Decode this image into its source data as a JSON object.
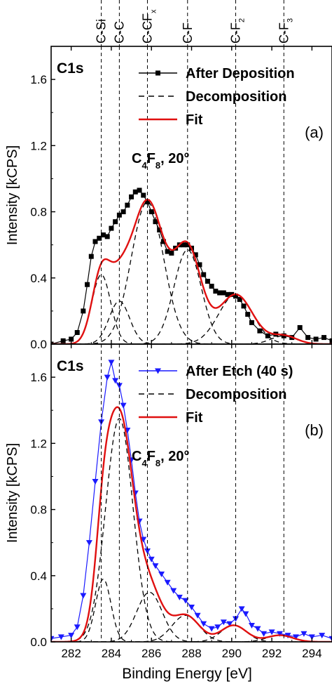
{
  "figure": {
    "xlabel": "Binding Energy [eV]",
    "peak_labels": [
      {
        "base": "C-Si",
        "sub": ""
      },
      {
        "base": "C-C",
        "sub": ""
      },
      {
        "base": "C-CF",
        "sub": "x"
      },
      {
        "base": "C-F",
        "sub": ""
      },
      {
        "base": "C-F",
        "sub": "2"
      },
      {
        "base": "C-F",
        "sub": "3"
      }
    ],
    "colors": {
      "data_a": "#000000",
      "data_b": "#1a1aff",
      "fit": "#e01010",
      "decomposition": "#000000",
      "reference_lines": "#000000"
    }
  },
  "chart_data": [
    {
      "type": "line",
      "panel_tag": "C1s",
      "panel_letter": "(a)",
      "condition": {
        "base": "C",
        "sub1": "4",
        "mid": "F",
        "sub2": "8",
        "tail": ", 20°"
      },
      "xlabel": "Binding Energy [eV]",
      "ylabel": "Intensity [kCPS]",
      "xlim": [
        281,
        295
      ],
      "ylim": [
        0,
        1.8
      ],
      "xticks": [
        282,
        284,
        286,
        288,
        290,
        292,
        294
      ],
      "yticks": [
        0.0,
        0.4,
        0.8,
        1.2,
        1.6
      ],
      "ytick_labels": [
        "0.0",
        "0.4",
        "0.8",
        "1.2",
        "1.6"
      ],
      "reference_lines_x": [
        283.5,
        284.4,
        285.8,
        287.8,
        290.2,
        292.6
      ],
      "legend": {
        "position": "top-right",
        "entries": [
          {
            "label": "After Deposition",
            "style": "line-square"
          },
          {
            "label": "Decomposition",
            "style": "dashed"
          },
          {
            "label": "Fit",
            "style": "red-line"
          }
        ]
      },
      "components": [
        {
          "center": 283.5,
          "amplitude": 0.42,
          "fwhm": 1.1
        },
        {
          "center": 284.4,
          "amplitude": 0.26,
          "fwhm": 1.2
        },
        {
          "center": 285.8,
          "amplitude": 0.86,
          "fwhm": 1.9
        },
        {
          "center": 287.8,
          "amplitude": 0.57,
          "fwhm": 1.6
        },
        {
          "center": 290.2,
          "amplitude": 0.3,
          "fwhm": 2.0
        },
        {
          "center": 292.6,
          "amplitude": 0.05,
          "fwhm": 1.5
        }
      ],
      "data_points": [
        {
          "x": 281.0,
          "y": 0.0
        },
        {
          "x": 281.6,
          "y": 0.02
        },
        {
          "x": 282.0,
          "y": 0.03
        },
        {
          "x": 282.3,
          "y": 0.07
        },
        {
          "x": 282.6,
          "y": 0.2
        },
        {
          "x": 282.8,
          "y": 0.36
        },
        {
          "x": 283.0,
          "y": 0.53
        },
        {
          "x": 283.2,
          "y": 0.62
        },
        {
          "x": 283.4,
          "y": 0.64
        },
        {
          "x": 283.6,
          "y": 0.66
        },
        {
          "x": 283.8,
          "y": 0.65
        },
        {
          "x": 284.0,
          "y": 0.7
        },
        {
          "x": 284.2,
          "y": 0.74
        },
        {
          "x": 284.4,
          "y": 0.78
        },
        {
          "x": 284.6,
          "y": 0.8
        },
        {
          "x": 284.8,
          "y": 0.84
        },
        {
          "x": 285.0,
          "y": 0.89
        },
        {
          "x": 285.2,
          "y": 0.92
        },
        {
          "x": 285.4,
          "y": 0.93
        },
        {
          "x": 285.6,
          "y": 0.9
        },
        {
          "x": 285.8,
          "y": 0.86
        },
        {
          "x": 286.0,
          "y": 0.8
        },
        {
          "x": 286.2,
          "y": 0.74
        },
        {
          "x": 286.4,
          "y": 0.69
        },
        {
          "x": 286.6,
          "y": 0.62
        },
        {
          "x": 286.8,
          "y": 0.56
        },
        {
          "x": 287.0,
          "y": 0.55
        },
        {
          "x": 287.2,
          "y": 0.58
        },
        {
          "x": 287.4,
          "y": 0.6
        },
        {
          "x": 287.6,
          "y": 0.6
        },
        {
          "x": 287.8,
          "y": 0.6
        },
        {
          "x": 288.0,
          "y": 0.58
        },
        {
          "x": 288.2,
          "y": 0.54
        },
        {
          "x": 288.4,
          "y": 0.48
        },
        {
          "x": 288.6,
          "y": 0.42
        },
        {
          "x": 288.8,
          "y": 0.38
        },
        {
          "x": 289.0,
          "y": 0.35
        },
        {
          "x": 289.2,
          "y": 0.32
        },
        {
          "x": 289.4,
          "y": 0.31
        },
        {
          "x": 289.6,
          "y": 0.31
        },
        {
          "x": 289.8,
          "y": 0.3
        },
        {
          "x": 290.0,
          "y": 0.3
        },
        {
          "x": 290.2,
          "y": 0.29
        },
        {
          "x": 290.4,
          "y": 0.27
        },
        {
          "x": 290.6,
          "y": 0.23
        },
        {
          "x": 290.8,
          "y": 0.18
        },
        {
          "x": 291.0,
          "y": 0.13
        },
        {
          "x": 291.4,
          "y": 0.08
        },
        {
          "x": 291.8,
          "y": 0.05
        },
        {
          "x": 292.2,
          "y": 0.06
        },
        {
          "x": 292.6,
          "y": 0.05
        },
        {
          "x": 293.0,
          "y": 0.04
        },
        {
          "x": 293.4,
          "y": 0.1
        },
        {
          "x": 293.8,
          "y": 0.04
        },
        {
          "x": 294.2,
          "y": 0.03
        },
        {
          "x": 294.6,
          "y": 0.04
        },
        {
          "x": 295.0,
          "y": 0.02
        }
      ]
    },
    {
      "type": "line",
      "panel_tag": "C1s",
      "panel_letter": "(b)",
      "condition": {
        "base": "C",
        "sub1": "4",
        "mid": "F",
        "sub2": "8",
        "tail": ", 20°"
      },
      "xlabel": "Binding Energy [eV]",
      "ylabel": "Intensity [kCPS]",
      "xlim": [
        281,
        295
      ],
      "ylim": [
        0,
        1.8
      ],
      "xticks": [
        282,
        284,
        286,
        288,
        290,
        292,
        294
      ],
      "xtick_labels": [
        "282",
        "284",
        "286",
        "288",
        "290",
        "292",
        "294"
      ],
      "yticks": [
        0.0,
        0.4,
        0.8,
        1.2,
        1.6
      ],
      "ytick_labels": [
        "0.0",
        "0.4",
        "0.8",
        "1.2",
        "1.6"
      ],
      "reference_lines_x": [
        283.5,
        284.4,
        285.8,
        287.8,
        290.2,
        292.6
      ],
      "legend": {
        "position": "top-right",
        "entries": [
          {
            "label": "After Etch (40 s)",
            "style": "line-triangle"
          },
          {
            "label": "Decomposition",
            "style": "dashed"
          },
          {
            "label": "Fit",
            "style": "red-line"
          }
        ]
      },
      "components": [
        {
          "center": 283.6,
          "amplitude": 0.38,
          "fwhm": 0.9
        },
        {
          "center": 284.4,
          "amplitude": 1.35,
          "fwhm": 1.6
        },
        {
          "center": 285.9,
          "amplitude": 0.3,
          "fwhm": 1.5
        },
        {
          "center": 287.7,
          "amplitude": 0.16,
          "fwhm": 1.6
        },
        {
          "center": 290.1,
          "amplitude": 0.1,
          "fwhm": 1.5
        },
        {
          "center": 292.4,
          "amplitude": 0.04,
          "fwhm": 1.5
        }
      ],
      "data_points": [
        {
          "x": 281.0,
          "y": 0.02
        },
        {
          "x": 281.5,
          "y": 0.03
        },
        {
          "x": 282.0,
          "y": 0.04
        },
        {
          "x": 282.3,
          "y": 0.09
        },
        {
          "x": 282.6,
          "y": 0.28
        },
        {
          "x": 282.9,
          "y": 0.6
        },
        {
          "x": 283.2,
          "y": 0.97
        },
        {
          "x": 283.5,
          "y": 1.33
        },
        {
          "x": 283.8,
          "y": 1.6
        },
        {
          "x": 284.0,
          "y": 1.69
        },
        {
          "x": 284.2,
          "y": 1.58
        },
        {
          "x": 284.4,
          "y": 1.55
        },
        {
          "x": 284.6,
          "y": 1.43
        },
        {
          "x": 284.8,
          "y": 1.28
        },
        {
          "x": 285.0,
          "y": 1.1
        },
        {
          "x": 285.2,
          "y": 0.9
        },
        {
          "x": 285.4,
          "y": 0.73
        },
        {
          "x": 285.6,
          "y": 0.62
        },
        {
          "x": 285.8,
          "y": 0.55
        },
        {
          "x": 286.0,
          "y": 0.5
        },
        {
          "x": 286.2,
          "y": 0.46
        },
        {
          "x": 286.5,
          "y": 0.41
        },
        {
          "x": 286.8,
          "y": 0.36
        },
        {
          "x": 287.1,
          "y": 0.31
        },
        {
          "x": 287.4,
          "y": 0.27
        },
        {
          "x": 287.7,
          "y": 0.25
        },
        {
          "x": 288.0,
          "y": 0.21
        },
        {
          "x": 288.3,
          "y": 0.16
        },
        {
          "x": 288.6,
          "y": 0.11
        },
        {
          "x": 289.0,
          "y": 0.08
        },
        {
          "x": 289.3,
          "y": 0.09
        },
        {
          "x": 289.6,
          "y": 0.12
        },
        {
          "x": 289.9,
          "y": 0.11
        },
        {
          "x": 290.2,
          "y": 0.14
        },
        {
          "x": 290.5,
          "y": 0.2
        },
        {
          "x": 290.7,
          "y": 0.17
        },
        {
          "x": 291.0,
          "y": 0.1
        },
        {
          "x": 291.3,
          "y": 0.08
        },
        {
          "x": 291.6,
          "y": 0.05
        },
        {
          "x": 292.0,
          "y": 0.06
        },
        {
          "x": 292.4,
          "y": 0.05
        },
        {
          "x": 292.8,
          "y": 0.04
        },
        {
          "x": 293.2,
          "y": 0.03
        },
        {
          "x": 293.6,
          "y": 0.05
        },
        {
          "x": 294.0,
          "y": 0.03
        },
        {
          "x": 294.5,
          "y": 0.04
        },
        {
          "x": 295.0,
          "y": 0.02
        }
      ]
    }
  ]
}
